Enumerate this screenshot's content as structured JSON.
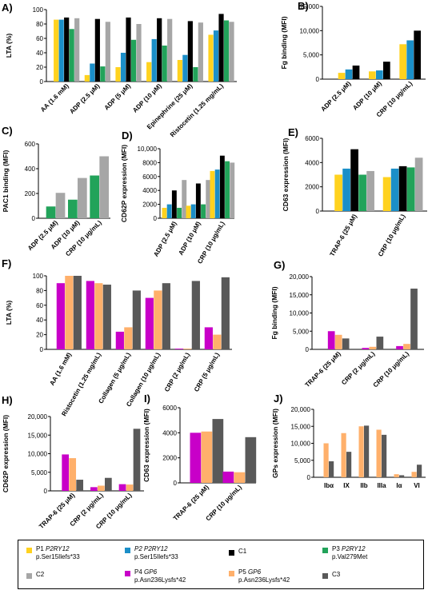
{
  "colors": {
    "P1": "#FFD21F",
    "P2": "#1B8FC8",
    "C1": "#000000",
    "P3": "#22A35A",
    "C2": "#A6A6A6",
    "P4": "#C800C8",
    "P5": "#FFB06B",
    "C3": "#595959"
  },
  "chart_data": [
    {
      "id": "A",
      "type": "bar",
      "panel_letter": "A)",
      "ylabel": "LTA (%)",
      "ylim": [
        0,
        100
      ],
      "yticks": [
        0,
        20,
        40,
        60,
        80,
        100
      ],
      "series_keys": [
        "P1",
        "P2",
        "C1",
        "P3",
        "C2"
      ],
      "categories": [
        "AA (1.6 mM)",
        "ADP (2.5 μM)",
        "ADP (5 μM)",
        "ADP (10 μM)",
        "Epinephrine (25 μM)",
        "Ristocetin (1.25 mg/mL)"
      ],
      "values": [
        [
          86,
          86,
          89,
          73,
          88
        ],
        [
          9,
          25,
          87,
          21,
          83
        ],
        [
          20,
          40,
          89,
          58,
          80
        ],
        [
          27,
          59,
          88,
          50,
          87
        ],
        [
          30,
          37,
          84,
          20,
          82
        ],
        [
          65,
          71,
          94,
          85,
          83
        ]
      ]
    },
    {
      "id": "B",
      "type": "bar",
      "panel_letter": "B)",
      "ylabel": "Fg binding (MFI)",
      "ylim": [
        0,
        15000
      ],
      "yticks": [
        0,
        5000,
        10000,
        15000
      ],
      "ytick_labels": [
        "0",
        "5,000",
        "10,000",
        "15,000"
      ],
      "series_keys": [
        "P1",
        "P2",
        "C1"
      ],
      "categories": [
        "ADP (2.5 μM)",
        "ADP (10 μM)",
        "CRP (10 μg/mL)"
      ],
      "values": [
        [
          1300,
          2000,
          2800
        ],
        [
          1600,
          1800,
          3600
        ],
        [
          7200,
          8000,
          10000
        ]
      ]
    },
    {
      "id": "C",
      "type": "bar",
      "panel_letter": "C)",
      "ylabel": "PAC1 binding (MFI)",
      "ylim": [
        0,
        600
      ],
      "yticks": [
        0,
        200,
        400,
        600
      ],
      "series_keys": [
        "P3",
        "C2"
      ],
      "categories": [
        "ADP (2.5 μM)",
        "ADP (10 μM)",
        "CRP (10 μg/mL)"
      ],
      "values": [
        [
          95,
          205
        ],
        [
          150,
          325
        ],
        [
          345,
          500
        ]
      ]
    },
    {
      "id": "D",
      "type": "bar",
      "panel_letter": "D)",
      "ylabel": "CD62P expression (MFI)",
      "ylim": [
        0,
        10000
      ],
      "yticks": [
        0,
        2000,
        4000,
        6000,
        8000,
        10000
      ],
      "ytick_labels": [
        "0",
        "2000",
        "4000",
        "6000",
        "8000",
        "10,000"
      ],
      "series_keys": [
        "P1",
        "P2",
        "C1",
        "P3",
        "C2"
      ],
      "categories": [
        "ADP (2.5 μM)",
        "ADP (10 μM)",
        "CRP (10 μg/mL)"
      ],
      "values": [
        [
          1500,
          2000,
          4000,
          1500,
          5500
        ],
        [
          1800,
          2000,
          5000,
          2000,
          5500
        ],
        [
          6800,
          7000,
          9000,
          8200,
          8000
        ]
      ]
    },
    {
      "id": "E",
      "type": "bar",
      "panel_letter": "E)",
      "ylabel": "CD63 expression (MFI)",
      "ylim": [
        0,
        6000
      ],
      "yticks": [
        0,
        2000,
        4000,
        6000
      ],
      "series_keys": [
        "P1",
        "P2",
        "C1",
        "P3",
        "C2"
      ],
      "categories": [
        "TRAP-6 (25 μM)",
        "CRP (10 μg/mL)"
      ],
      "values": [
        [
          3000,
          3500,
          5100,
          3000,
          3300
        ],
        [
          2800,
          3500,
          3700,
          3600,
          4400
        ]
      ]
    },
    {
      "id": "F",
      "type": "bar",
      "panel_letter": "F)",
      "ylabel": "LTA (%)",
      "ylim": [
        0,
        100
      ],
      "yticks": [
        0,
        20,
        40,
        60,
        80,
        100
      ],
      "series_keys": [
        "P4",
        "P5",
        "C3"
      ],
      "categories": [
        "AA (1.6 mM)",
        "Ristocetin (1.25 mg/mL)",
        "Collagen (5 μg/mL)",
        "Collagen (10 μg/mL)",
        "CRP (2 μg/mL)",
        "CRP (5 μg/mL)"
      ],
      "values": [
        [
          90,
          100,
          100
        ],
        [
          93,
          90,
          88
        ],
        [
          24,
          30,
          80
        ],
        [
          70,
          80,
          90
        ],
        [
          1,
          1,
          93
        ],
        [
          30,
          20,
          98
        ]
      ]
    },
    {
      "id": "G",
      "type": "bar",
      "panel_letter": "G)",
      "ylabel": "Fg binding (MFI)",
      "ylim": [
        0,
        20000
      ],
      "yticks": [
        0,
        5000,
        10000,
        15000,
        20000
      ],
      "ytick_labels": [
        "0",
        "5,000",
        "10,000",
        "15,000",
        "20,000"
      ],
      "series_keys": [
        "P4",
        "P5",
        "C3"
      ],
      "categories": [
        "TRAP-6 (25 μM)",
        "CRP (2 μg/mL)",
        "CRP (10 μg/mL)"
      ],
      "values": [
        [
          5000,
          4000,
          3000
        ],
        [
          400,
          700,
          3500
        ],
        [
          900,
          1500,
          16700
        ]
      ]
    },
    {
      "id": "H",
      "type": "bar",
      "panel_letter": "H)",
      "ylabel": "CD62P expression (MFI)",
      "ylim": [
        0,
        20000
      ],
      "yticks": [
        0,
        5000,
        10000,
        15000,
        20000
      ],
      "ytick_labels": [
        "0",
        "5,000",
        "10,000",
        "15,000",
        "20,000"
      ],
      "series_keys": [
        "P4",
        "P5",
        "C3"
      ],
      "categories": [
        "TRAP-6 (25 μM)",
        "CRP (2 μg/mL)",
        "CRP (10 μg/mL)"
      ],
      "values": [
        [
          9800,
          8800,
          3000
        ],
        [
          1000,
          1400,
          3500
        ],
        [
          1800,
          1700,
          16700
        ]
      ]
    },
    {
      "id": "I",
      "type": "bar",
      "panel_letter": "I)",
      "ylabel": "CD63 expression (MFI)",
      "ylim": [
        0,
        6000
      ],
      "yticks": [
        0,
        2000,
        4000,
        6000
      ],
      "series_keys": [
        "P4",
        "P5",
        "C3"
      ],
      "categories": [
        "TRAP-6 (25 μM)",
        "CRP (10 μg/mL)"
      ],
      "values": [
        [
          4000,
          4100,
          5100
        ],
        [
          900,
          850,
          3650
        ]
      ]
    },
    {
      "id": "J",
      "type": "bar",
      "panel_letter": "J)",
      "ylabel": "GPs expression (MFI)",
      "ylim": [
        0,
        20000
      ],
      "yticks": [
        0,
        5000,
        10000,
        15000,
        20000
      ],
      "ytick_labels": [
        "0",
        "5,000",
        "10,000",
        "15,000",
        "20,000"
      ],
      "series_keys": [
        "P5",
        "C3"
      ],
      "categories": [
        "Ibα",
        "IX",
        "IIb",
        "IIIa",
        "Iα",
        "VI"
      ],
      "values": [
        [
          10000,
          4700
        ],
        [
          13000,
          7500
        ],
        [
          15000,
          15200
        ],
        [
          14000,
          12500
        ],
        [
          900,
          600
        ],
        [
          1600,
          3700
        ]
      ]
    }
  ],
  "legend": [
    {
      "key": "P1",
      "line1": "P1 ",
      "gene": "P2RY12",
      "line2": "p.Ser15Ilefs*33"
    },
    {
      "key": "P2",
      "line1": "P2 ",
      "gene": "P2RY12",
      "line2": "p.Ser15Ilefs*33"
    },
    {
      "key": "C1",
      "line1": "C1",
      "gene": "",
      "line2": ""
    },
    {
      "key": "P3",
      "line1": "P3 ",
      "gene": "P2RY12",
      "line2": "p.Val279Met"
    },
    {
      "key": "C2",
      "line1": "C2",
      "gene": "",
      "line2": ""
    },
    {
      "key": "P4",
      "line1": "P4 ",
      "gene": "GP6",
      "line2": "p.Asn236Lysfs*42"
    },
    {
      "key": "P5",
      "line1": "P5 ",
      "gene": "GP6",
      "line2": "p.Asn236Lysfs*42"
    },
    {
      "key": "C3",
      "line1": "C3",
      "gene": "",
      "line2": ""
    }
  ]
}
